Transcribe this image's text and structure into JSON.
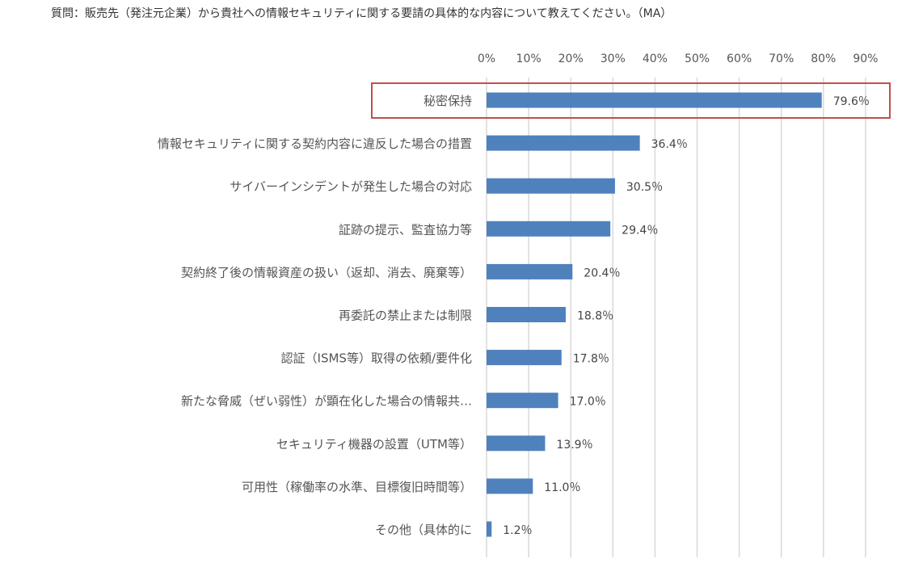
{
  "question": "質問：販売先（発注元企業）から貴社への情報セキュリティに関する要請の具体的な内容について教えてください。（MA）",
  "colors": {
    "bar": "#4f81bd",
    "grid": "#d9d9d9",
    "highlight": "#c0504d"
  },
  "chart_data": {
    "type": "bar",
    "orientation": "horizontal",
    "categories": [
      "秘密保持",
      "情報セキュリティに関する契約内容に違反した場合の措置",
      "サイバーインシデントが発生した場合の対応",
      "証跡の提示、監査協力等",
      "契約終了後の情報資産の扱い（返却、消去、廃棄等）",
      "再委託の禁止または制限",
      "認証（ISMS等）取得の依頼/要件化",
      "新たな脅威（ぜい弱性）が顕在化した場合の情報共…",
      "セキュリティ機器の設置（UTM等）",
      "可用性（稼働率の水準、目標復旧時間等）",
      "その他（具体的に"
    ],
    "values": [
      79.6,
      36.4,
      30.5,
      29.4,
      20.4,
      18.8,
      17.8,
      17.0,
      13.9,
      11.0,
      1.2
    ],
    "value_labels": [
      "79.6％",
      "36.4％",
      "30.5％",
      "29.4％",
      "20.4％",
      "18.8％",
      "17.8％",
      "17.0％",
      "13.9％",
      "11.0％",
      "1.2％"
    ],
    "x_ticks": [
      0,
      10,
      20,
      30,
      40,
      50,
      60,
      70,
      80,
      90
    ],
    "x_tick_labels": [
      "0%",
      "10%",
      "20%",
      "30%",
      "40%",
      "50%",
      "60%",
      "70%",
      "80%",
      "90%"
    ],
    "xlim": [
      0,
      90
    ],
    "x_axis_position": "top",
    "grid": true,
    "highlighted_category": "秘密保持"
  }
}
